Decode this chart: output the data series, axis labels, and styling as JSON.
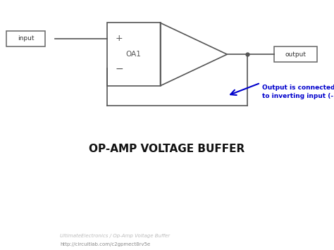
{
  "bg_color": "#ffffff",
  "footer_bg": "#111111",
  "title": "OP-AMP VOLTAGE BUFFER",
  "title_color": "#111111",
  "title_fontsize": 11,
  "annotation_text": "Output is connected back\nto inverting input (-)",
  "annotation_color": "#0000cc",
  "circuit_color": "#555555",
  "footer_text1": "UltimateElectronics / Op-Amp Voltage Buffer",
  "footer_text2": "http://circuitlab.com/c2gpmect8rv5e",
  "footer_color": "#aaaaaa",
  "footer_url_color": "#888888",
  "opamp_label": "OA1",
  "plus_label": "+",
  "minus_label": "−",
  "input_label": "input",
  "output_label": "output",
  "lw": 1.2,
  "xlim": [
    0,
    10
  ],
  "ylim": [
    0,
    8
  ]
}
